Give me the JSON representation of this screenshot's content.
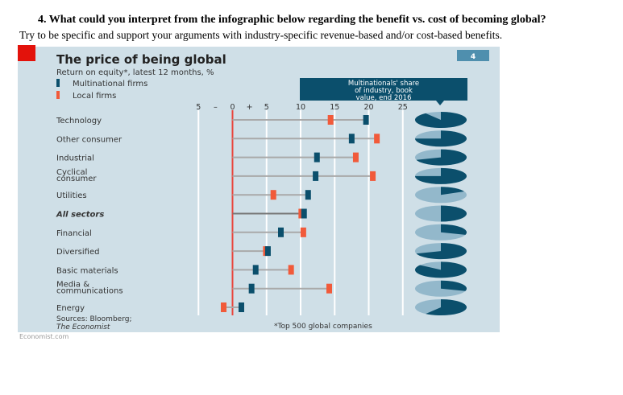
{
  "question": {
    "line1": "4.   What could you interpret from the infographic below regarding the benefit vs. cost of becoming global?",
    "line2": "Try to be specific and support your arguments with industry-specific revenue-based and/or cost-based benefits."
  },
  "credit": "Economist.com",
  "colors": {
    "multinational": "#0b4f6c",
    "local": "#f15a3a",
    "share_light": "#93b8cb",
    "background": "#cfdfe7",
    "brand_red": "#e3120b"
  },
  "chart_data": {
    "type": "dumbbell",
    "title": "The price of being global",
    "subtitle": "Return on equity*, latest 12 months, %",
    "badge": "4",
    "legend": [
      "Multinational firms",
      "Local firms"
    ],
    "pie_header": "Multinationals' share of industry, book value, end 2016",
    "x_ticks": [
      "5",
      "–",
      "0",
      "+",
      "5",
      "10",
      "15",
      "20",
      "25"
    ],
    "xlim": [
      -5,
      25
    ],
    "categories": [
      "Technology",
      "Other consumer",
      "Industrial",
      "Cyclical consumer",
      "Utilities",
      "All sectors",
      "Financial",
      "Diversified",
      "Basic materials",
      "Media & communications",
      "Energy"
    ],
    "series": [
      {
        "name": "Multinational firms",
        "values": [
          19.6,
          17.5,
          12.4,
          12.2,
          11.1,
          10.5,
          7.1,
          5.2,
          3.4,
          2.8,
          1.3
        ]
      },
      {
        "name": "Local firms",
        "values": [
          14.4,
          21.2,
          18.1,
          20.6,
          6.0,
          10.1,
          10.4,
          4.9,
          8.6,
          14.2,
          -1.3
        ]
      }
    ],
    "multinational_share_pct": [
      90,
      75,
      70,
      75,
      18,
      50,
      30,
      70,
      85,
      30,
      60
    ],
    "source": "Sources: Bloomberg;",
    "source2": "The Economist",
    "footnote": "*Top 500 global companies"
  }
}
